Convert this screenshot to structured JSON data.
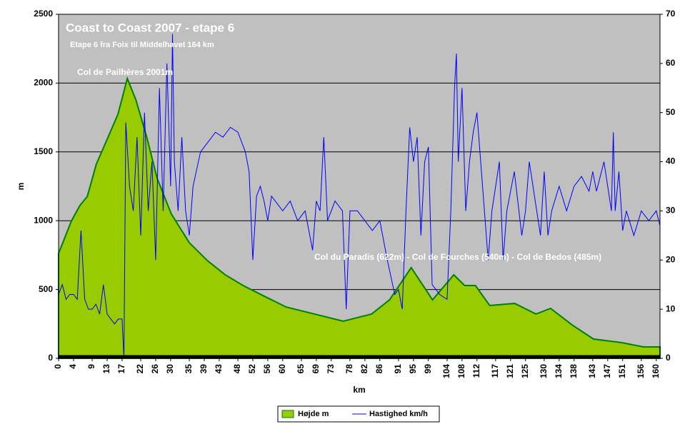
{
  "chart_data": {
    "type": "area",
    "title": "Coast to Coast 2007 - etape 6",
    "subtitle": "Etape 6 fra Foix til Middelhavet 164 km",
    "annotations": [
      "Col de Pailhères 2001m",
      "Col du Paradis (622m) - Col de Fourches (540m) - Col de Bedos (485m)"
    ],
    "x_label": "km",
    "y_label": "m",
    "xlim": [
      0,
      161
    ],
    "xticks": [
      0,
      4,
      9,
      13,
      17,
      22,
      26,
      30,
      35,
      39,
      43,
      48,
      52,
      56,
      60,
      65,
      69,
      73,
      78,
      82,
      86,
      91,
      95,
      99,
      104,
      108,
      112,
      117,
      121,
      125,
      130,
      134,
      138,
      143,
      147,
      151,
      156,
      160
    ],
    "ylim": [
      0,
      2500
    ],
    "yticks": [
      0,
      500,
      1000,
      1500,
      2000,
      2500
    ],
    "y2lim": [
      0,
      70
    ],
    "y2ticks": [
      0,
      10,
      20,
      30,
      40,
      50,
      60,
      70
    ],
    "grid": true,
    "legend": "bottom",
    "series": [
      {
        "name": "Højde m",
        "color": "#99cc00",
        "line_color": "#008000",
        "x": [
          0,
          3.4,
          5.7,
          7.7,
          10.1,
          12.6,
          15.9,
          18.4,
          20.7,
          23.5,
          26.4,
          30.2,
          35,
          39.8,
          44.6,
          49.4,
          55.1,
          60.9,
          68.5,
          76.2,
          83.8,
          88.6,
          94.4,
          100.1,
          105.8,
          108.7,
          111.6,
          115.4,
          122.1,
          127.8,
          131.7,
          137.4,
          143.2,
          150.8,
          156.6,
          161
        ],
        "values": [
          762,
          996,
          1110,
          1177,
          1411,
          1566,
          1774,
          2033,
          1878,
          1618,
          1307,
          1048,
          840,
          711,
          607,
          529,
          451,
          373,
          322,
          270,
          322,
          425,
          659,
          425,
          607,
          529,
          529,
          384,
          399,
          322,
          363,
          244,
          140,
          114,
          83,
          83
        ]
      },
      {
        "name": "Hastighed km/h",
        "color": "#0000ff",
        "axis": "y2",
        "x": [
          0,
          1,
          2,
          3,
          4,
          5,
          6,
          7,
          8,
          9,
          10,
          11,
          12,
          13,
          14,
          15,
          16,
          17,
          17.5,
          18,
          19,
          20,
          21,
          22,
          23,
          24,
          25,
          26,
          27,
          28,
          29,
          30,
          30.5,
          31,
          32,
          33,
          34,
          35,
          36,
          38,
          40,
          42,
          44,
          46,
          48,
          50,
          51,
          52,
          53,
          54,
          55,
          56,
          57,
          58,
          60,
          62,
          64,
          66,
          68,
          69,
          70,
          71,
          72,
          74,
          76,
          77,
          78,
          80,
          82,
          84,
          86,
          88,
          90,
          91,
          92,
          93,
          94,
          95,
          96,
          97,
          98,
          99,
          100,
          102,
          104,
          105,
          106,
          106.5,
          107,
          108,
          109,
          110,
          111,
          112,
          113,
          114,
          115,
          116,
          118,
          119,
          120,
          122,
          124,
          125,
          126,
          128,
          129,
          130,
          131,
          132,
          134,
          136,
          138,
          140,
          142,
          143,
          144,
          146,
          148,
          148.5,
          149,
          150,
          151,
          152,
          154,
          156,
          158,
          160,
          161
        ],
        "values": [
          13,
          15,
          12,
          13,
          13,
          12,
          26,
          12,
          10,
          10,
          11,
          9,
          15,
          9,
          8,
          7,
          8,
          8,
          0,
          48,
          35,
          30,
          45,
          25,
          50,
          30,
          40,
          20,
          55,
          30,
          60,
          35,
          66,
          40,
          30,
          45,
          30,
          25,
          35,
          42,
          44,
          46,
          45,
          47,
          46,
          42,
          38,
          20,
          33,
          35,
          32,
          28,
          33,
          32,
          30,
          32,
          28,
          30,
          22,
          32,
          30,
          45,
          28,
          32,
          30,
          10,
          30,
          30,
          28,
          26,
          28,
          20,
          13,
          14,
          10,
          30,
          47,
          40,
          45,
          25,
          40,
          43,
          15,
          13,
          12,
          30,
          55,
          62,
          40,
          55,
          30,
          40,
          46,
          50,
          40,
          30,
          20,
          30,
          40,
          20,
          30,
          38,
          25,
          30,
          40,
          30,
          25,
          38,
          25,
          30,
          35,
          30,
          35,
          37,
          34,
          38,
          34,
          40,
          30,
          46,
          30,
          38,
          26,
          30,
          25,
          30,
          28,
          30,
          27
        ]
      }
    ]
  }
}
